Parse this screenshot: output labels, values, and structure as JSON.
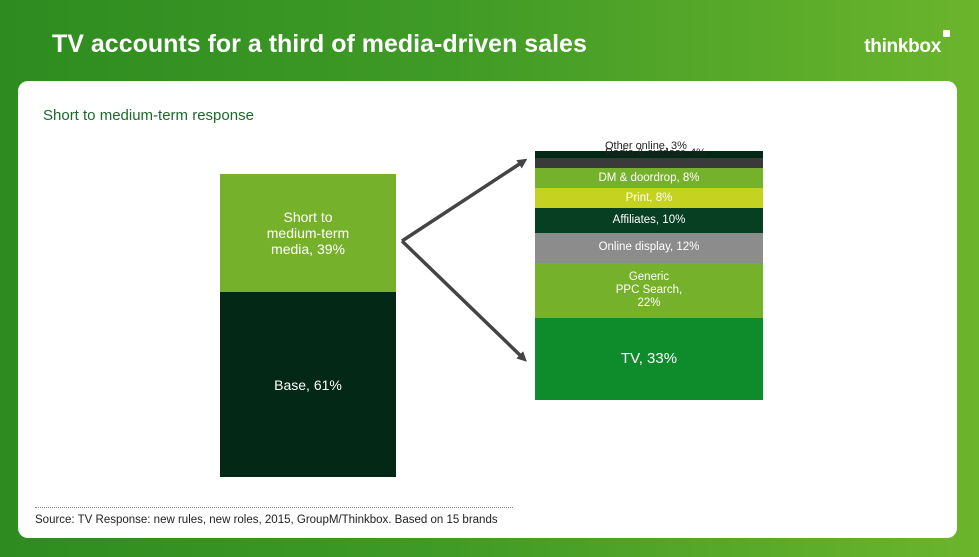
{
  "header": {
    "title": "TV accounts for a third of media-driven sales",
    "logo_text": "thinkbox"
  },
  "subtitle": "Short to medium-term response",
  "source": "Source: TV Response: new rules, new roles, 2015, GroupM/Thinkbox. Based on 15 brands",
  "colors": {
    "background_green": "#3f9a26",
    "arrow": "#444444"
  },
  "chart_data": [
    {
      "type": "bar",
      "stacked": true,
      "segments": [
        {
          "label": "Short to\nmedium-term\nmedia, 39%",
          "value": 39,
          "color": "#76b12b"
        },
        {
          "label": "Base, 61%",
          "value": 61,
          "color": "#032816"
        }
      ]
    },
    {
      "type": "bar",
      "stacked": true,
      "segments": [
        {
          "label": "Other online, 3%",
          "value": 3,
          "color": "#032816"
        },
        {
          "label": "Radio & outdoor, 4%",
          "value": 4,
          "color": "#3a3a3a"
        },
        {
          "label": "DM & doordrop, 8%",
          "value": 8,
          "color": "#76b12b"
        },
        {
          "label": "Print, 8%",
          "value": 8,
          "color": "#c5d220"
        },
        {
          "label": "Affiliates, 10%",
          "value": 10,
          "color": "#063f22"
        },
        {
          "label": "Online display, 12%",
          "value": 12,
          "color": "#8c8c8c"
        },
        {
          "label": "Generic\nPPC Search,\n22%",
          "value": 22,
          "color": "#76b12b"
        },
        {
          "label": "TV, 33%",
          "value": 33,
          "color": "#0e8b2b"
        }
      ]
    }
  ]
}
